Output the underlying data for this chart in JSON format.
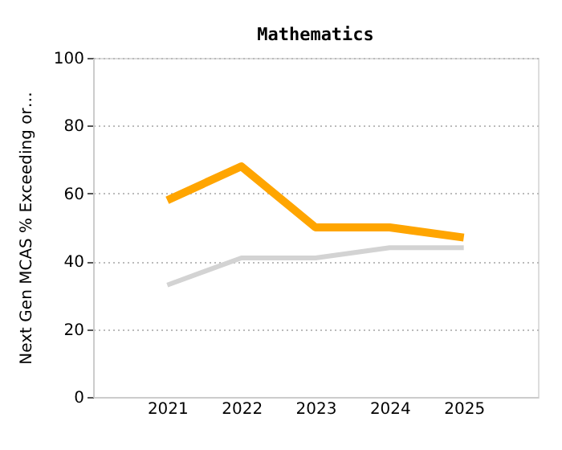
{
  "chart_data": {
    "type": "line",
    "title": "Mathematics",
    "ylabel": "Next Gen MCAS % Exceeding or…",
    "categories": [
      "2021",
      "2022",
      "2023",
      "2024",
      "2025"
    ],
    "series": [
      {
        "color": "#ffa500",
        "values": [
          58,
          68,
          50,
          50,
          47
        ]
      },
      {
        "color": "#d3d3d3",
        "values": [
          33,
          41,
          41,
          44,
          44
        ]
      }
    ],
    "ylim": [
      0,
      100
    ],
    "yticks": [
      0,
      20,
      40,
      60,
      80,
      100
    ],
    "grid": "y",
    "legend": false,
    "marker": "none",
    "line_style": "solid"
  }
}
